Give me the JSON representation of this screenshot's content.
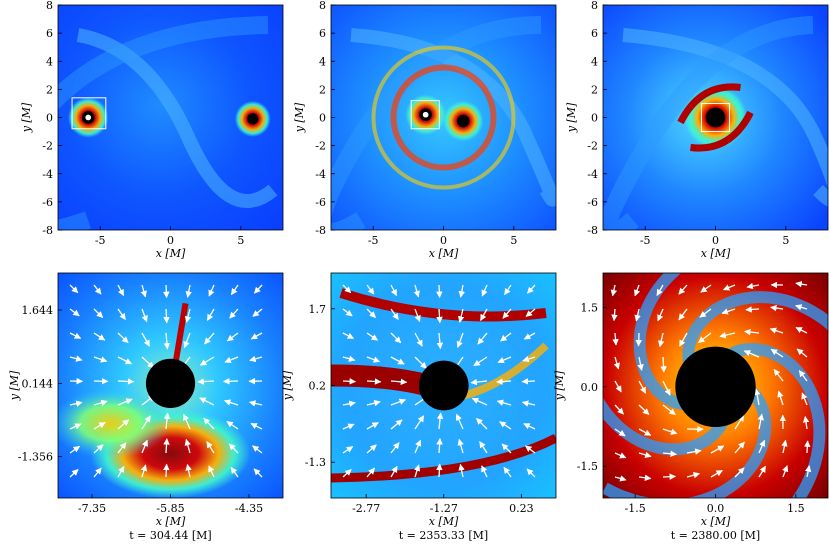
{
  "chart_data": [
    {
      "type": "heatmap",
      "row": "top",
      "col": 1,
      "xlabel": "x  [M]",
      "ylabel": "y  [M]",
      "xlim": [
        -8,
        8
      ],
      "ylim": [
        -8,
        8
      ],
      "xticks": [
        "-5",
        "0",
        "5"
      ],
      "xtick_values": [
        -5,
        0,
        5
      ],
      "yticks": [
        "-8",
        "-6",
        "-4",
        "-2",
        "0",
        "2",
        "4",
        "6",
        "8"
      ],
      "ytick_values": [
        -8,
        -6,
        -4,
        -2,
        0,
        2,
        4,
        6,
        8
      ],
      "black_holes": [
        {
          "x": -5.85,
          "y": 0.0,
          "r": 0.45,
          "ring": true
        },
        {
          "x": 5.85,
          "y": -0.1,
          "r": 0.4,
          "ring": false
        }
      ],
      "zoom_box": {
        "x0": -7.0,
        "x1": -4.6,
        "y0": -0.8,
        "y1": 1.4
      },
      "colormap": "jet"
    },
    {
      "type": "heatmap",
      "row": "top",
      "col": 2,
      "xlabel": "x  [M]",
      "ylabel": "y  [M]",
      "xlim": [
        -8,
        8
      ],
      "ylim": [
        -8,
        8
      ],
      "xticks": [
        "-5",
        "0",
        "5"
      ],
      "xtick_values": [
        -5,
        0,
        5
      ],
      "yticks": [
        "-8",
        "-6",
        "-4",
        "-2",
        "0",
        "2",
        "4",
        "6",
        "8"
      ],
      "ytick_values": [
        -8,
        -6,
        -4,
        -2,
        0,
        2,
        4,
        6,
        8
      ],
      "black_holes": [
        {
          "x": -1.27,
          "y": 0.2,
          "r": 0.45,
          "ring": true
        },
        {
          "x": 1.4,
          "y": -0.25,
          "r": 0.45,
          "ring": false
        }
      ],
      "zoom_box": {
        "x0": -2.3,
        "x1": -0.3,
        "y0": -0.8,
        "y1": 1.2
      },
      "colormap": "jet"
    },
    {
      "type": "heatmap",
      "row": "top",
      "col": 3,
      "xlabel": "x  [M]",
      "ylabel": "y  [M]",
      "xlim": [
        -8,
        8
      ],
      "ylim": [
        -8,
        8
      ],
      "xticks": [
        "-5",
        "0",
        "5"
      ],
      "xtick_values": [
        -5,
        0,
        5
      ],
      "yticks": [
        "-8",
        "-6",
        "-4",
        "-2",
        "0",
        "2",
        "4",
        "6",
        "8"
      ],
      "ytick_values": [
        -8,
        -6,
        -4,
        -2,
        0,
        2,
        4,
        6,
        8
      ],
      "black_holes": [
        {
          "x": 0.0,
          "y": 0.0,
          "r": 0.7,
          "ring": false
        }
      ],
      "zoom_box": {
        "x0": -1.0,
        "x1": 1.0,
        "y0": -1.0,
        "y1": 1.0
      },
      "colormap": "jet"
    },
    {
      "type": "heatmap",
      "row": "bottom",
      "col": 1,
      "xlabel": "x  [M]",
      "ylabel": "y  [M]",
      "xlim": [
        -8.0,
        -3.7
      ],
      "ylim": [
        -2.2,
        2.4
      ],
      "xticks": [
        "-7.35",
        "-5.85",
        "-4.35"
      ],
      "xtick_values": [
        -7.35,
        -5.85,
        -4.35
      ],
      "yticks": [
        "-1.356",
        "0.144",
        "1.644"
      ],
      "ytick_values": [
        -1.356,
        0.144,
        1.644
      ],
      "black_holes": [
        {
          "x": -5.85,
          "y": 0.144,
          "r": 0.47,
          "ring": false
        }
      ],
      "vector_field": "inflow",
      "caption": "t = 304.44 [M]"
    },
    {
      "type": "heatmap",
      "row": "bottom",
      "col": 2,
      "xlabel": "x  [M]",
      "ylabel": "y  [M]",
      "xlim": [
        -3.45,
        0.9
      ],
      "ylim": [
        -2.0,
        2.4
      ],
      "xticks": [
        "-2.77",
        "-1.27",
        "0.23"
      ],
      "xtick_values": [
        -2.77,
        -1.27,
        0.23
      ],
      "yticks": [
        "-1.3",
        "0.2",
        "1.7"
      ],
      "ytick_values": [
        -1.3,
        0.2,
        1.7
      ],
      "black_holes": [
        {
          "x": -1.27,
          "y": 0.2,
          "r": 0.48,
          "ring": false
        }
      ],
      "vector_field": "inflow",
      "caption": "t = 2353.33 [M]"
    },
    {
      "type": "heatmap",
      "row": "bottom",
      "col": 3,
      "xlabel": "x  [M]",
      "ylabel": "y  [M]",
      "xlim": [
        -2.1,
        2.1
      ],
      "ylim": [
        -2.1,
        2.15
      ],
      "xticks": [
        "-1.5",
        "0.0",
        "1.5"
      ],
      "xtick_values": [
        -1.5,
        0.0,
        1.5
      ],
      "yticks": [
        "-1.5",
        "0.0",
        "1.5"
      ],
      "ytick_values": [
        -1.5,
        0.0,
        1.5
      ],
      "black_holes": [
        {
          "x": 0.0,
          "y": 0.0,
          "r": 0.75,
          "ring": false
        }
      ],
      "vector_field": "swirl",
      "caption": "t = 2380.00 [M]"
    }
  ],
  "colors": {
    "background": "#0a4cff",
    "arrow": "#ffffff",
    "hole": "#000000",
    "box": "#ffffff"
  }
}
